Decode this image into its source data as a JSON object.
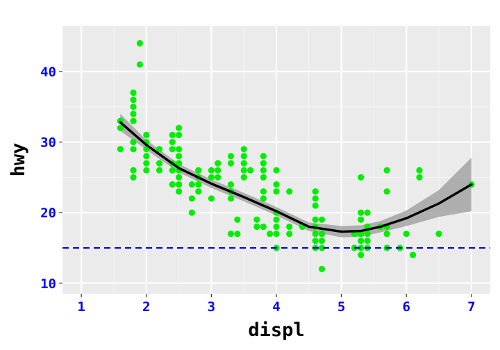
{
  "chart_data": {
    "type": "scatter",
    "title": "",
    "xlabel": "displ",
    "ylabel": "hwy",
    "xlim": [
      0.71,
      7.29
    ],
    "ylim": [
      8.5,
      46.5
    ],
    "x_ticks": [
      1,
      2,
      3,
      4,
      5,
      6,
      7
    ],
    "y_ticks": [
      10,
      20,
      30,
      40
    ],
    "x_tick_labels": [
      "1",
      "2",
      "3",
      "4",
      "5",
      "6",
      "7"
    ],
    "y_tick_labels": [
      "10",
      "20",
      "30",
      "40"
    ],
    "grid": true,
    "legend": "none",
    "colors": {
      "panel_bg": "#ebebeb",
      "grid_major": "#ffffff",
      "grid_minor": "#f5f5f5",
      "points": "#00ee00",
      "smooth_line": "#000000",
      "ribbon": "#999999",
      "hline": "#0000cc",
      "tick_labels": "#0000ff"
    },
    "hline": {
      "y": 15,
      "style": "dashed"
    },
    "points": [
      [
        1.6,
        33
      ],
      [
        1.6,
        32
      ],
      [
        1.6,
        29
      ],
      [
        1.8,
        37
      ],
      [
        1.8,
        36
      ],
      [
        1.8,
        35
      ],
      [
        1.8,
        34
      ],
      [
        1.8,
        33
      ],
      [
        1.8,
        30
      ],
      [
        1.8,
        29
      ],
      [
        1.8,
        26
      ],
      [
        1.8,
        25
      ],
      [
        1.9,
        44
      ],
      [
        1.9,
        41
      ],
      [
        2.0,
        31
      ],
      [
        2.0,
        30
      ],
      [
        2.0,
        29
      ],
      [
        2.0,
        28
      ],
      [
        2.0,
        27
      ],
      [
        2.0,
        26
      ],
      [
        2.2,
        29
      ],
      [
        2.2,
        27
      ],
      [
        2.2,
        26
      ],
      [
        2.4,
        31
      ],
      [
        2.4,
        30
      ],
      [
        2.4,
        29
      ],
      [
        2.4,
        27
      ],
      [
        2.4,
        26
      ],
      [
        2.4,
        24
      ],
      [
        2.5,
        32
      ],
      [
        2.5,
        31
      ],
      [
        2.5,
        29
      ],
      [
        2.5,
        28
      ],
      [
        2.5,
        27
      ],
      [
        2.5,
        26
      ],
      [
        2.5,
        25
      ],
      [
        2.5,
        24
      ],
      [
        2.5,
        23
      ],
      [
        2.7,
        24
      ],
      [
        2.7,
        22
      ],
      [
        2.7,
        20
      ],
      [
        2.8,
        26
      ],
      [
        2.8,
        25
      ],
      [
        2.8,
        24
      ],
      [
        2.8,
        23
      ],
      [
        3.0,
        26
      ],
      [
        3.0,
        25
      ],
      [
        3.0,
        22
      ],
      [
        3.1,
        27
      ],
      [
        3.1,
        26
      ],
      [
        3.1,
        25
      ],
      [
        3.3,
        28
      ],
      [
        3.3,
        27
      ],
      [
        3.3,
        24
      ],
      [
        3.3,
        23
      ],
      [
        3.3,
        22
      ],
      [
        3.3,
        17
      ],
      [
        3.4,
        19
      ],
      [
        3.4,
        17
      ],
      [
        3.5,
        29
      ],
      [
        3.5,
        28
      ],
      [
        3.5,
        27
      ],
      [
        3.5,
        26
      ],
      [
        3.5,
        25
      ],
      [
        3.6,
        26
      ],
      [
        3.7,
        19
      ],
      [
        3.7,
        18
      ],
      [
        3.8,
        28
      ],
      [
        3.8,
        27
      ],
      [
        3.8,
        26
      ],
      [
        3.8,
        25
      ],
      [
        3.8,
        23
      ],
      [
        3.8,
        22
      ],
      [
        3.8,
        18
      ],
      [
        3.9,
        17
      ],
      [
        4.0,
        26
      ],
      [
        4.0,
        24
      ],
      [
        4.0,
        23
      ],
      [
        4.0,
        20
      ],
      [
        4.0,
        19
      ],
      [
        4.0,
        18
      ],
      [
        4.0,
        17
      ],
      [
        4.0,
        15
      ],
      [
        4.2,
        23
      ],
      [
        4.2,
        18
      ],
      [
        4.2,
        17
      ],
      [
        4.4,
        18
      ],
      [
        4.6,
        23
      ],
      [
        4.6,
        22
      ],
      [
        4.6,
        21
      ],
      [
        4.6,
        19
      ],
      [
        4.6,
        18
      ],
      [
        4.6,
        17
      ],
      [
        4.6,
        16
      ],
      [
        4.6,
        15
      ],
      [
        4.7,
        19
      ],
      [
        4.7,
        17
      ],
      [
        4.7,
        16
      ],
      [
        4.7,
        15
      ],
      [
        4.7,
        12
      ],
      [
        5.2,
        17
      ],
      [
        5.2,
        15
      ],
      [
        5.3,
        25
      ],
      [
        5.3,
        20
      ],
      [
        5.3,
        19
      ],
      [
        5.3,
        17
      ],
      [
        5.3,
        16
      ],
      [
        5.3,
        15
      ],
      [
        5.3,
        14
      ],
      [
        5.4,
        20
      ],
      [
        5.4,
        18
      ],
      [
        5.4,
        17
      ],
      [
        5.4,
        16
      ],
      [
        5.4,
        15
      ],
      [
        5.6,
        18
      ],
      [
        5.7,
        26
      ],
      [
        5.7,
        23
      ],
      [
        5.7,
        18
      ],
      [
        5.7,
        17
      ],
      [
        5.7,
        15
      ],
      [
        5.9,
        15
      ],
      [
        6.0,
        17
      ],
      [
        6.1,
        14
      ],
      [
        6.2,
        26
      ],
      [
        6.2,
        25
      ],
      [
        6.5,
        17
      ],
      [
        7.0,
        24
      ]
    ],
    "smooth": {
      "x": [
        1.6,
        2.0,
        2.5,
        3.0,
        3.5,
        4.0,
        4.5,
        5.0,
        5.3,
        5.6,
        6.0,
        6.5,
        7.0
      ],
      "y": [
        32.8,
        29.6,
        26.3,
        24.1,
        22.2,
        20.2,
        18.0,
        17.3,
        17.4,
        18.0,
        19.2,
        21.3,
        24.0
      ],
      "lo": [
        31.6,
        28.9,
        25.7,
        23.5,
        21.6,
        19.6,
        17.4,
        16.5,
        16.6,
        17.2,
        18.1,
        19.4,
        20.2
      ],
      "hi": [
        34.0,
        30.3,
        26.9,
        24.7,
        22.8,
        20.8,
        18.6,
        18.1,
        18.2,
        18.8,
        20.3,
        23.2,
        27.8
      ]
    }
  }
}
